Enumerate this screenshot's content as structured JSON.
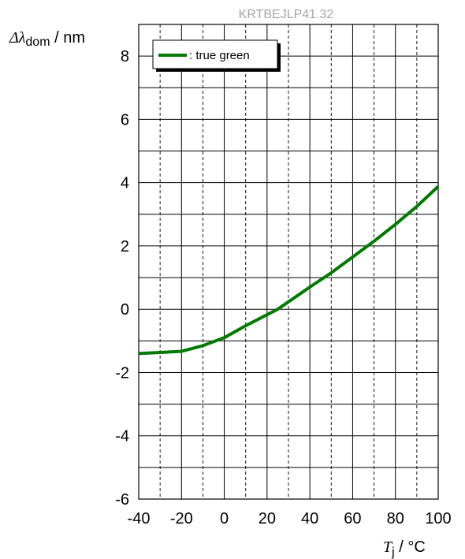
{
  "watermark": "KRTBEJLP41.32",
  "chart_data": {
    "type": "line",
    "title": "",
    "ylabel_symbol": "Δλ",
    "ylabel_sub": "dom",
    "ylabel_unit": " / nm",
    "xlabel_symbol": "T",
    "xlabel_sub": "j",
    "xlabel_unit": " / °C",
    "xlim": [
      -40,
      100
    ],
    "ylim": [
      -6,
      9
    ],
    "xticks": [
      -40,
      -20,
      0,
      20,
      40,
      60,
      80,
      100
    ],
    "yticks": [
      -6,
      -4,
      -2,
      0,
      2,
      4,
      6,
      8
    ],
    "x_minor_step": 10,
    "y_minor_step": 1,
    "grid": true,
    "legend_position": "top-left",
    "series": [
      {
        "name": ": true green",
        "color": "#007a00",
        "x": [
          -40,
          -20,
          -10,
          0,
          10,
          25,
          40,
          50,
          60,
          70,
          80,
          90,
          100
        ],
        "y": [
          -1.4,
          -1.33,
          -1.15,
          -0.9,
          -0.52,
          0.0,
          0.7,
          1.15,
          1.65,
          2.15,
          2.68,
          3.25,
          3.88
        ]
      }
    ]
  }
}
